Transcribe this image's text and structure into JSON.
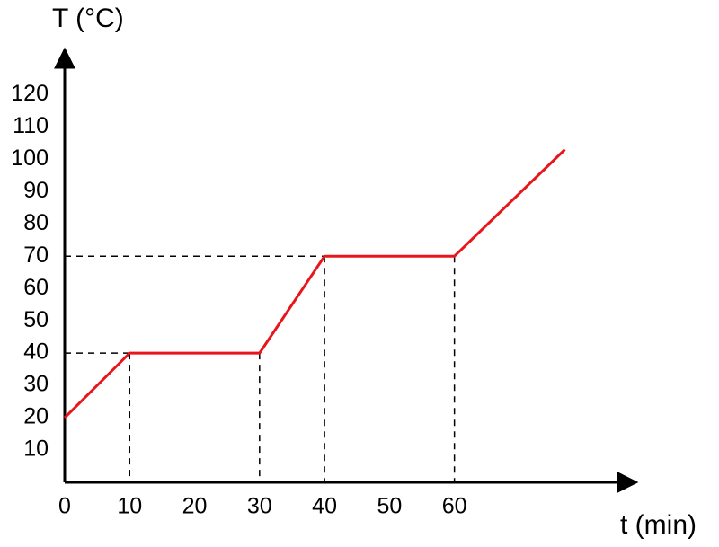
{
  "chart_data": {
    "type": "line",
    "y_label": "T (°C)",
    "x_label": "t (min)",
    "x": [
      0,
      10,
      30,
      40,
      60,
      77
    ],
    "series": [
      {
        "color": "#e8161b",
        "values": [
          20,
          40,
          40,
          70,
          70,
          103
        ]
      }
    ],
    "xlim": [
      0,
      88
    ],
    "ylim": [
      0,
      134
    ],
    "xticks": [
      0,
      10,
      20,
      30,
      40,
      50,
      60
    ],
    "yticks": [
      10,
      20,
      30,
      40,
      50,
      60,
      70,
      80,
      90,
      100,
      110,
      120
    ],
    "grid": false
  }
}
